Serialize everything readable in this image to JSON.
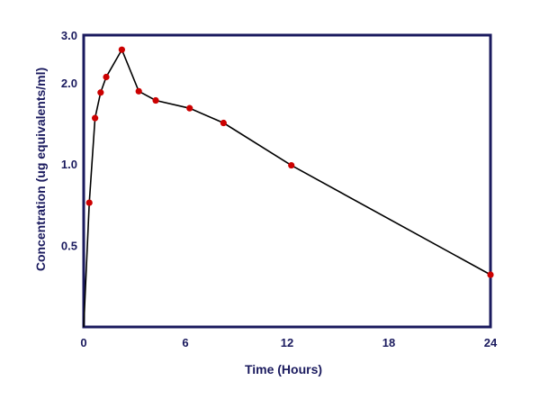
{
  "colors": {
    "frame": "#1a1a5e",
    "text": "#1a1a5e",
    "line": "#000000",
    "marker": "#cc0000",
    "background": "#ffffff"
  },
  "chart_data": {
    "type": "line",
    "title": "",
    "xlabel": "Time (Hours)",
    "ylabel": "Concentration (ug equivalents/ml)",
    "xlim": [
      0,
      24
    ],
    "ylim": [
      0.25,
      3.0
    ],
    "yscale": "log",
    "grid": false,
    "legend": "none",
    "x_ticks": [
      0,
      6,
      12,
      18,
      24
    ],
    "x_tick_labels": [
      "0",
      "6",
      "12",
      "18",
      "24"
    ],
    "y_ticks": [
      0.5,
      1.0,
      2.0,
      3.0
    ],
    "y_tick_labels": [
      "0.5",
      "1.0",
      "2.0",
      "3.0"
    ],
    "series": [
      {
        "name": "",
        "markers": true,
        "x": [
          0,
          0.33,
          0.67,
          1.0,
          1.33,
          2.25,
          3.25,
          4.25,
          6.25,
          8.25,
          12.25,
          24.0
        ],
        "y": [
          0.25,
          0.72,
          1.48,
          1.84,
          2.1,
          2.65,
          1.86,
          1.72,
          1.61,
          1.42,
          0.99,
          0.39
        ],
        "marker_from_index": 1
      }
    ]
  }
}
